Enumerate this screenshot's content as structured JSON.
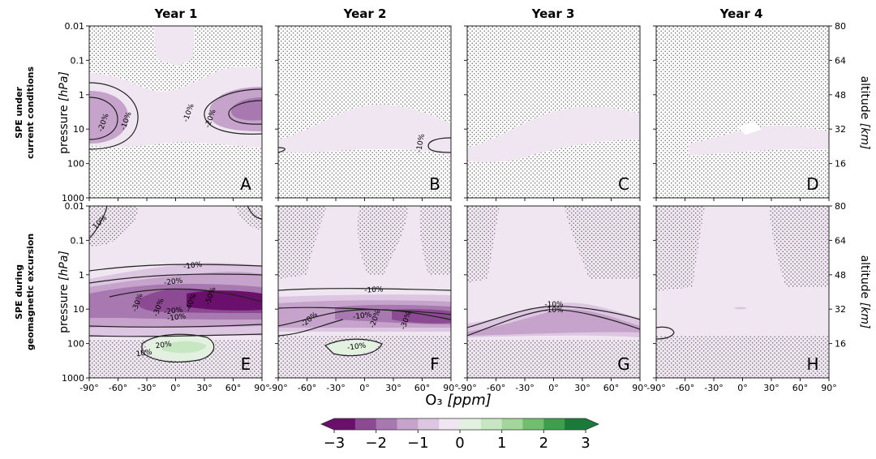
{
  "figure": {
    "columns": [
      "Year 1",
      "Year 2",
      "Year 3",
      "Year 4"
    ],
    "row_labels": [
      [
        "SPE under",
        "current conditions"
      ],
      [
        "SPE during",
        "geomagnetic excursion"
      ]
    ],
    "ylabel_main": "pressure",
    "ylabel_unit": "[hPa]",
    "ylabel_right_main": "altitude",
    "ylabel_right_unit": "[km]",
    "xlabel_main": "O₃",
    "xlabel_unit": "[ppm]"
  },
  "chart_data": {
    "type": "heatmap",
    "title": "",
    "xlabel": "O₃ [ppm]",
    "xticks": [
      "-90°",
      "-60°",
      "-30°",
      "0°",
      "30°",
      "60°",
      "90°"
    ],
    "xlim": [
      -90,
      90
    ],
    "ylabel": "pressure [hPa]",
    "yticks": [
      "0.01",
      "0.1",
      "1",
      "10",
      "100",
      "1000"
    ],
    "ylim_log10_hPa": [
      3,
      -2
    ],
    "ylabel_right": "altitude [km]",
    "yticks_right": [
      "80",
      "64",
      "48",
      "32",
      "16"
    ],
    "colorbar": {
      "ticks": [
        "−3",
        "−2",
        "−1",
        "0",
        "1",
        "2",
        "3"
      ],
      "levels": [
        -3,
        -2.5,
        -2,
        -1.5,
        -1,
        -0.5,
        0,
        0.5,
        1,
        1.5,
        2,
        2.5,
        3
      ],
      "colors": [
        "#6a0f6b",
        "#8b4a92",
        "#a779b0",
        "#c5a3cb",
        "#ddc6e1",
        "#efe6f1",
        "#e3f1e0",
        "#c7e6c2",
        "#a2d69b",
        "#72be6f",
        "#3e9e4e",
        "#1a7a3a"
      ]
    },
    "panels": [
      {
        "letter": "A",
        "row": 0,
        "col": 0,
        "contour_labels": [
          "-20%",
          "-10%",
          "-10%",
          "-20%"
        ]
      },
      {
        "letter": "B",
        "row": 0,
        "col": 1,
        "contour_labels": [
          "-10%"
        ]
      },
      {
        "letter": "C",
        "row": 0,
        "col": 2,
        "contour_labels": []
      },
      {
        "letter": "D",
        "row": 0,
        "col": 3,
        "contour_labels": []
      },
      {
        "letter": "E",
        "row": 1,
        "col": 0,
        "contour_labels": [
          "10%",
          "-10%",
          "-20%",
          "-30%",
          "-30%",
          "-40%",
          "-50%",
          "-20%",
          "-10%",
          "20%",
          "10%"
        ]
      },
      {
        "letter": "F",
        "row": 1,
        "col": 1,
        "contour_labels": [
          "-10%",
          "-20%",
          "-10%",
          "-20%",
          "-30%",
          "-10%"
        ]
      },
      {
        "letter": "G",
        "row": 1,
        "col": 2,
        "contour_labels": [
          "-10%",
          "-10%"
        ]
      },
      {
        "letter": "H",
        "row": 1,
        "col": 3,
        "contour_labels": []
      }
    ]
  }
}
